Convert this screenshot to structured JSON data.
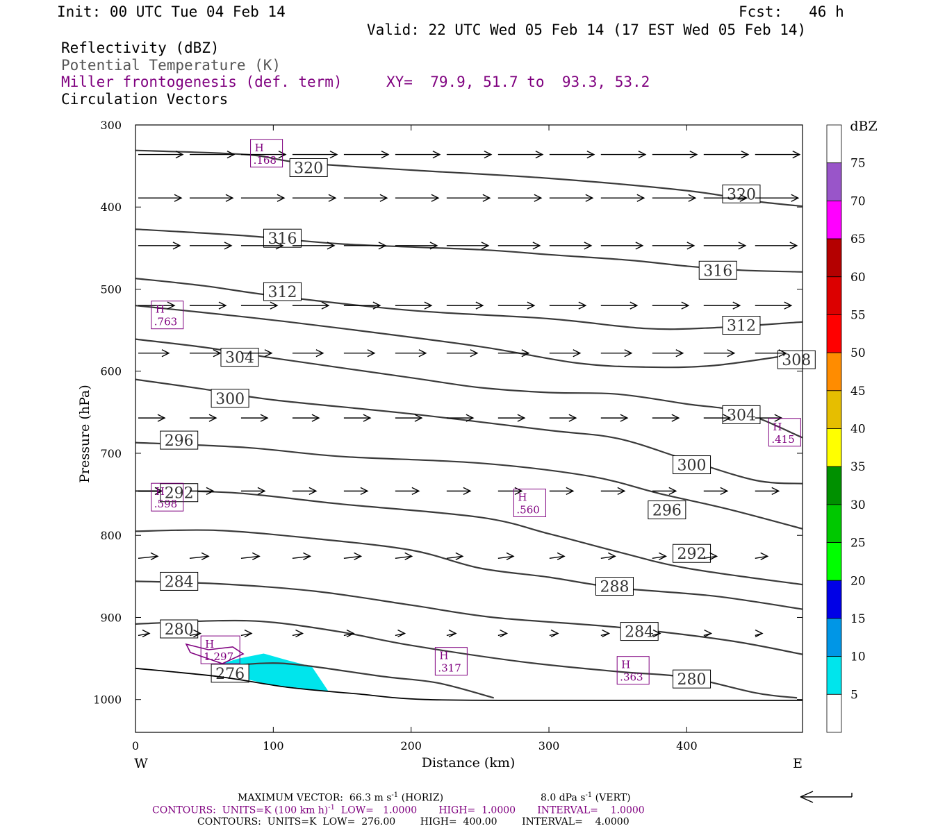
{
  "header": {
    "init": "Init: 00 UTC Tue 04 Feb 14",
    "fcst": "Fcst:   46 h",
    "valid": "Valid: 22 UTC Wed 05 Feb 14 (17 EST Wed 05 Feb 14)",
    "field1": "Reflectivity (dBZ)",
    "field2": "Potential Temperature (K)",
    "field3": "Miller frontogenesis (def. term)",
    "xy": "XY=  79.9, 51.7 to  93.3, 53.2",
    "field4": "Circulation Vectors"
  },
  "colors": {
    "theta": "#3a3a3a",
    "fronto": "#7f007f",
    "vector": "#000000",
    "refl5": "#00e5ec"
  },
  "footer": {
    "maxvec": "MAXIMUM VECTOR:  66.3 m s",
    "maxvec_sup": "-1",
    "maxvec_horiz": " (HORIZ)",
    "maxvec_vert": "8.0 dPa s",
    "maxvec_vert_sup": "-1",
    "maxvec_vert_tail": " (VERT)",
    "contours1": "CONTOURS:  UNITS=K (100 km h)",
    "contours1_sup": "-1",
    "contours1_tail": "  LOW=   1.0000       HIGH=  1.0000       INTERVAL=    1.0000",
    "contours2": "CONTOURS:  UNITS=K  LOW=  276.00        HIGH=  400.00        INTERVAL=    4.0000"
  },
  "chart_data": {
    "type": "cross-section",
    "xlabel": "Distance (km)",
    "ylabel": "Pressure (hPa)",
    "xlim": [
      0,
      484
    ],
    "ylim": [
      1040,
      300
    ],
    "x_ticks": [
      0,
      100,
      200,
      300,
      400
    ],
    "y_ticks": [
      300,
      400,
      500,
      600,
      700,
      800,
      900,
      1000
    ],
    "x_end_labels": {
      "left": "W",
      "right": "E"
    },
    "colorbar": {
      "title": "dBZ",
      "levels": [
        5,
        10,
        15,
        20,
        25,
        30,
        35,
        40,
        45,
        50,
        55,
        60,
        65,
        70,
        75
      ],
      "colors": [
        "#ffffff",
        "#00e5ec",
        "#0096e6",
        "#0000e6",
        "#00ff00",
        "#00c800",
        "#009000",
        "#ffff00",
        "#e6be00",
        "#ff8c00",
        "#ff0000",
        "#dc0000",
        "#b40000",
        "#ff00ff",
        "#9955c9",
        "#ffffff"
      ]
    },
    "reflectivity_areas": [
      {
        "dbz": 5,
        "polygon": [
          [
            55,
            960
          ],
          [
            75,
            950
          ],
          [
            93,
            944
          ],
          [
            110,
            952
          ],
          [
            128,
            960
          ],
          [
            140,
            990
          ],
          [
            98,
            982
          ],
          [
            62,
            968
          ]
        ]
      }
    ],
    "theta_contours": [
      {
        "value": 320,
        "points": [
          [
            0,
            331
          ],
          [
            80,
            336
          ],
          [
            120,
            346
          ],
          [
            200,
            355
          ],
          [
            300,
            365
          ],
          [
            400,
            380
          ],
          [
            450,
            393
          ],
          [
            484,
            399
          ]
        ],
        "labels": [
          [
            112,
            352
          ],
          [
            426,
            384
          ]
        ]
      },
      {
        "value": 316,
        "points": [
          [
            0,
            427
          ],
          [
            80,
            435
          ],
          [
            150,
            445
          ],
          [
            250,
            452
          ],
          [
            300,
            458
          ],
          [
            360,
            465
          ],
          [
            400,
            472
          ],
          [
            440,
            477
          ],
          [
            484,
            479
          ]
        ],
        "labels": [
          [
            93,
            438
          ],
          [
            409,
            477
          ]
        ]
      },
      {
        "value": 312,
        "points": [
          [
            0,
            487
          ],
          [
            50,
            496
          ],
          [
            100,
            508
          ],
          [
            200,
            526
          ],
          [
            300,
            536
          ],
          [
            370,
            548
          ],
          [
            420,
            547
          ],
          [
            484,
            540
          ]
        ],
        "labels": [
          [
            93,
            503
          ],
          [
            426,
            544
          ]
        ]
      },
      {
        "value": 308,
        "points": [
          [
            0,
            520
          ],
          [
            80,
            534
          ],
          [
            150,
            548
          ],
          [
            250,
            570
          ],
          [
            320,
            590
          ],
          [
            370,
            595
          ],
          [
            420,
            593
          ],
          [
            484,
            578
          ]
        ],
        "labels": [
          [
            466,
            586
          ]
        ]
      },
      {
        "value": 304,
        "points": [
          [
            0,
            561
          ],
          [
            50,
            571
          ],
          [
            100,
            584
          ],
          [
            200,
            608
          ],
          [
            250,
            620
          ],
          [
            300,
            626
          ],
          [
            350,
            628
          ],
          [
            400,
            640
          ],
          [
            440,
            650
          ],
          [
            484,
            681
          ]
        ],
        "labels": [
          [
            62,
            583
          ],
          [
            426,
            653
          ]
        ]
      },
      {
        "value": 300,
        "points": [
          [
            0,
            610
          ],
          [
            50,
            622
          ],
          [
            100,
            635
          ],
          [
            200,
            652
          ],
          [
            300,
            672
          ],
          [
            350,
            682
          ],
          [
            400,
            708
          ],
          [
            450,
            733
          ],
          [
            484,
            737
          ]
        ],
        "labels": [
          [
            55,
            633
          ],
          [
            390,
            714
          ]
        ]
      },
      {
        "value": 296,
        "points": [
          [
            0,
            687
          ],
          [
            80,
            693
          ],
          [
            150,
            704
          ],
          [
            250,
            712
          ],
          [
            330,
            728
          ],
          [
            380,
            749
          ],
          [
            430,
            768
          ],
          [
            484,
            792
          ]
        ],
        "labels": [
          [
            18,
            684
          ],
          [
            372,
            769
          ]
        ]
      },
      {
        "value": 292,
        "points": [
          [
            0,
            746
          ],
          [
            70,
            748
          ],
          [
            150,
            762
          ],
          [
            250,
            778
          ],
          [
            300,
            798
          ],
          [
            350,
            820
          ],
          [
            400,
            840
          ],
          [
            484,
            860
          ]
        ],
        "labels": [
          [
            18,
            748
          ],
          [
            390,
            822
          ]
        ]
      },
      {
        "value": 288,
        "points": [
          [
            0,
            795
          ],
          [
            60,
            794
          ],
          [
            130,
            804
          ],
          [
            200,
            818
          ],
          [
            250,
            840
          ],
          [
            300,
            851
          ],
          [
            350,
            864
          ],
          [
            420,
            874
          ],
          [
            484,
            890
          ]
        ],
        "labels": [
          [
            334,
            862
          ]
        ]
      },
      {
        "value": 284,
        "points": [
          [
            0,
            856
          ],
          [
            60,
            859
          ],
          [
            130,
            868
          ],
          [
            200,
            885
          ],
          [
            260,
            900
          ],
          [
            350,
            912
          ],
          [
            430,
            928
          ],
          [
            484,
            945
          ]
        ],
        "labels": [
          [
            18,
            856
          ],
          [
            352,
            917
          ]
        ]
      },
      {
        "value": 280,
        "points": [
          [
            0,
            908
          ],
          [
            60,
            904
          ],
          [
            100,
            906
          ],
          [
            150,
            918
          ],
          [
            200,
            934
          ],
          [
            280,
            954
          ],
          [
            350,
            966
          ],
          [
            400,
            973
          ],
          [
            450,
            992
          ],
          [
            480,
            998
          ]
        ],
        "labels": [
          [
            18,
            914
          ],
          [
            390,
            975
          ]
        ]
      },
      {
        "value": 276,
        "points": [
          [
            55,
            962
          ],
          [
            90,
            956
          ],
          [
            120,
            958
          ],
          [
            180,
            972
          ],
          [
            220,
            980
          ],
          [
            260,
            998
          ]
        ],
        "labels": [
          [
            55,
            968
          ]
        ]
      }
    ],
    "ground_surface": [
      [
        0,
        962
      ],
      [
        60,
        972
      ],
      [
        110,
        985
      ],
      [
        160,
        993
      ],
      [
        210,
        1000
      ],
      [
        300,
        1001
      ],
      [
        400,
        1001
      ],
      [
        484,
        1001
      ]
    ],
    "fronto_maxima": [
      {
        "label": "H",
        "value": ".168",
        "x": 86,
        "p": 337
      },
      {
        "label": "H",
        "value": ".763",
        "x": 14,
        "p": 534
      },
      {
        "label": "H",
        "value": ".415",
        "x": 462,
        "p": 677
      },
      {
        "label": "H",
        "value": ".598",
        "x": 14,
        "p": 756
      },
      {
        "label": "H",
        "value": ".560",
        "x": 277,
        "p": 763
      },
      {
        "label": "H",
        "value": "1.297",
        "x": 50,
        "p": 942
      },
      {
        "label": "H",
        "value": ".317",
        "x": 220,
        "p": 956
      },
      {
        "label": "H",
        "value": ".363",
        "x": 352,
        "p": 967
      }
    ],
    "reference_vector": {
      "magnitude": 66.3,
      "units": "m s-1 (HORIZ)",
      "vertical": 8.0,
      "vertical_units": "dPa s-1 (VERT)"
    }
  }
}
